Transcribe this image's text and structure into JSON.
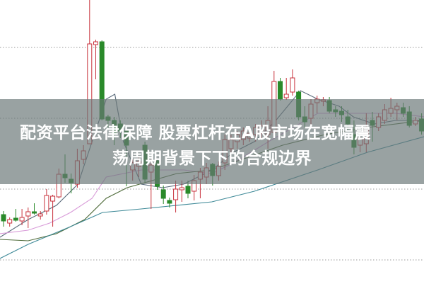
{
  "headline": {
    "line1": "配资平台法律保障 股票杠杆在A股市场在宽幅震",
    "line2": "荡周期背景下下的合规边界"
  },
  "colors": {
    "up": "#c8323c",
    "down": "#2a8a2a",
    "grid": "#9a9a9a",
    "banner": "#697676",
    "ma_slate": "#5a6a7a",
    "ma_pink": "#d89ad8",
    "ma_olive": "#4f6b3a",
    "ma_teal": "#3f8a98"
  },
  "chart_data": {
    "type": "candlestick",
    "title": "",
    "xlabel": "",
    "ylabel": "",
    "ylim": [
      6.6,
      46.7
    ],
    "grid": true,
    "grid_style": "dotted horizontal",
    "gridlines": [
      10,
      20,
      30,
      40
    ],
    "candles_ohlc_order": "open, close, high, low",
    "candles": [
      [
        16.4,
        15.5,
        16.9,
        14.7
      ],
      [
        15.2,
        15.7,
        16.0,
        14.7
      ],
      [
        15.9,
        15.6,
        17.2,
        15.4
      ],
      [
        15.5,
        16.0,
        17.2,
        14.9
      ],
      [
        16.2,
        16.8,
        17.4,
        14.5
      ],
      [
        16.8,
        16.6,
        18.0,
        16.4
      ],
      [
        16.2,
        16.5,
        16.9,
        15.7
      ],
      [
        16.9,
        19.1,
        20.0,
        16.4
      ],
      [
        18.3,
        19.0,
        19.2,
        14.7
      ],
      [
        18.9,
        22.1,
        22.9,
        18.7
      ],
      [
        22.1,
        21.6,
        24.9,
        20.9
      ],
      [
        21.4,
        20.9,
        22.2,
        19.4
      ],
      [
        20.7,
        24.0,
        25.7,
        20.2
      ],
      [
        24.2,
        25.4,
        26.2,
        23.5
      ],
      [
        26.4,
        40.5,
        46.7,
        26.4
      ],
      [
        40.4,
        40.8,
        41.1,
        35.5
      ],
      [
        40.8,
        29.9,
        41.0,
        29.7
      ],
      [
        30.2,
        29.7,
        30.5,
        28.7
      ],
      [
        29.7,
        27.7,
        30.2,
        26.2
      ],
      [
        29.2,
        28.2,
        29.7,
        27.2
      ],
      [
        28.2,
        26.2,
        28.7,
        20.4
      ],
      [
        22.7,
        23.7,
        24.2,
        21.2
      ],
      [
        23.2,
        23.9,
        24.5,
        21.7
      ],
      [
        26.2,
        21.4,
        26.7,
        20.9
      ],
      [
        22.4,
        23.4,
        24.2,
        17.2
      ],
      [
        24.0,
        20.4,
        24.2,
        19.9
      ],
      [
        19.9,
        18.7,
        20.5,
        17.9
      ],
      [
        18.4,
        18.0,
        18.8,
        17.4
      ],
      [
        18.5,
        20.0,
        21.2,
        16.7
      ],
      [
        19.9,
        20.2,
        21.2,
        18.2
      ],
      [
        20.4,
        19.4,
        21.2,
        18.7
      ],
      [
        19.7,
        21.2,
        22.0,
        18.4
      ],
      [
        21.4,
        22.4,
        23.0,
        18.7
      ],
      [
        21.7,
        23.0,
        23.7,
        20.7
      ],
      [
        23.5,
        21.9,
        23.7,
        20.5
      ],
      [
        21.9,
        23.2,
        23.9,
        21.2
      ],
      [
        23.7,
        27.0,
        27.7,
        22.7
      ],
      [
        25.7,
        27.0,
        27.7,
        24.5
      ],
      [
        26.7,
        27.7,
        28.2,
        25.7
      ],
      [
        27.0,
        28.2,
        28.7,
        26.2
      ],
      [
        27.2,
        27.9,
        28.7,
        26.7
      ],
      [
        27.7,
        28.7,
        29.2,
        26.7
      ],
      [
        27.9,
        28.9,
        29.7,
        27.2
      ],
      [
        27.7,
        29.7,
        31.7,
        25.7
      ],
      [
        28.0,
        35.2,
        36.7,
        27.7
      ],
      [
        35.2,
        32.7,
        35.7,
        32.5
      ],
      [
        32.9,
        33.4,
        35.7,
        32.6
      ],
      [
        33.7,
        35.7,
        36.9,
        33.2
      ],
      [
        33.7,
        30.2,
        33.9,
        29.7
      ],
      [
        30.2,
        29.5,
        31.7,
        28.7
      ],
      [
        30.0,
        32.0,
        32.7,
        28.7
      ],
      [
        32.2,
        32.7,
        33.2,
        30.7
      ],
      [
        32.4,
        32.6,
        33.0,
        31.7
      ],
      [
        32.5,
        31.0,
        33.0,
        30.7
      ],
      [
        31.2,
        30.9,
        31.7,
        30.2
      ],
      [
        31.0,
        30.5,
        31.7,
        29.5
      ],
      [
        30.2,
        29.2,
        31.2,
        28.2
      ],
      [
        27.7,
        25.9,
        29.7,
        24.9
      ],
      [
        26.2,
        27.2,
        27.7,
        25.2
      ],
      [
        26.4,
        28.7,
        30.7,
        25.2
      ],
      [
        29.7,
        29.0,
        30.9,
        26.7
      ],
      [
        28.7,
        30.2,
        30.7,
        28.2
      ],
      [
        29.7,
        31.2,
        32.0,
        29.2
      ],
      [
        30.7,
        31.4,
        32.9,
        30.2
      ],
      [
        31.2,
        31.7,
        32.2,
        29.7
      ],
      [
        31.5,
        30.7,
        32.2,
        30.2
      ],
      [
        30.9,
        29.0,
        31.7,
        28.7
      ],
      [
        29.2,
        29.7,
        30.2,
        28.9
      ],
      [
        29.9,
        28.2,
        30.7,
        27.7
      ]
    ],
    "moving_averages": [
      {
        "color_key": "ma_slate",
        "points": [
          [
            -0.6,
            13.2
          ],
          [
            4,
            15.7
          ],
          [
            8.6,
            17.7
          ],
          [
            12.1,
            20.7
          ],
          [
            14.4,
            26.7
          ],
          [
            16.7,
            32.7
          ],
          [
            18.1,
            33.4
          ],
          [
            19.5,
            26.7
          ],
          [
            22.4,
            20.7
          ],
          [
            25.9,
            20.2
          ],
          [
            29.3,
            20.7
          ],
          [
            33.9,
            22.7
          ],
          [
            37.4,
            25.2
          ],
          [
            40.8,
            26.7
          ],
          [
            44.3,
            29.7
          ],
          [
            48.3,
            33.9
          ],
          [
            51.1,
            32.7
          ],
          [
            54.6,
            31.7
          ],
          [
            56.9,
            30.2
          ],
          [
            60.3,
            29.2
          ],
          [
            63.8,
            29.7
          ],
          [
            68.4,
            29.7
          ]
        ]
      },
      {
        "color_key": "ma_pink",
        "points": [
          [
            -0.6,
            13.7
          ],
          [
            4,
            14.2
          ],
          [
            7.5,
            15.2
          ],
          [
            10.9,
            16.7
          ],
          [
            14.4,
            18.7
          ],
          [
            16.7,
            21.7
          ],
          [
            22.4,
            22.7
          ],
          [
            29.3,
            22.7
          ],
          [
            33.9,
            22.2
          ],
          [
            37.4,
            23.7
          ],
          [
            43.1,
            26.7
          ],
          [
            51.1,
            30.7
          ],
          [
            56.9,
            30.7
          ],
          [
            63.8,
            30.7
          ],
          [
            68.4,
            30.2
          ]
        ]
      },
      {
        "color_key": "ma_olive",
        "points": [
          [
            -0.6,
            12.9
          ],
          [
            4,
            12.7
          ],
          [
            8.6,
            13.7
          ],
          [
            13.2,
            15.7
          ],
          [
            16.7,
            18.7
          ],
          [
            20.1,
            20.2
          ],
          [
            28.2,
            22.2
          ],
          [
            33.9,
            22.7
          ],
          [
            45.4,
            26.2
          ],
          [
            52.3,
            27.7
          ],
          [
            59.2,
            28.7
          ],
          [
            68.4,
            29.7
          ]
        ]
      },
      {
        "color_key": "ma_teal",
        "points": [
          [
            -0.6,
            10.2
          ],
          [
            4,
            12.2
          ],
          [
            10.9,
            14.7
          ],
          [
            16.1,
            16.7
          ],
          [
            22.4,
            17.2
          ],
          [
            33.9,
            18.2
          ],
          [
            40.8,
            19.7
          ],
          [
            51.1,
            22.7
          ],
          [
            59.2,
            25.2
          ],
          [
            68.4,
            27.4
          ]
        ]
      }
    ]
  }
}
